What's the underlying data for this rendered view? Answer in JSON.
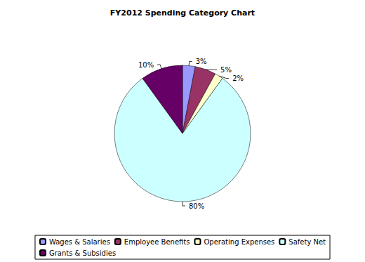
{
  "chart_data": {
    "type": "pie",
    "title": "FY2012 Spending Category Chart",
    "categories": [
      "Wages & Salaries",
      "Employee Benefits",
      "Operating Expenses",
      "Safety Net",
      "Grants & Subsidies"
    ],
    "values": [
      3,
      5,
      2,
      80,
      10
    ],
    "value_labels": [
      "3%",
      "5%",
      "2%",
      "80%",
      "10%"
    ],
    "colors": [
      "#9999ff",
      "#993366",
      "#ffffcc",
      "#ccffff",
      "#660066"
    ],
    "data_labels": true,
    "legend": "bottom"
  }
}
